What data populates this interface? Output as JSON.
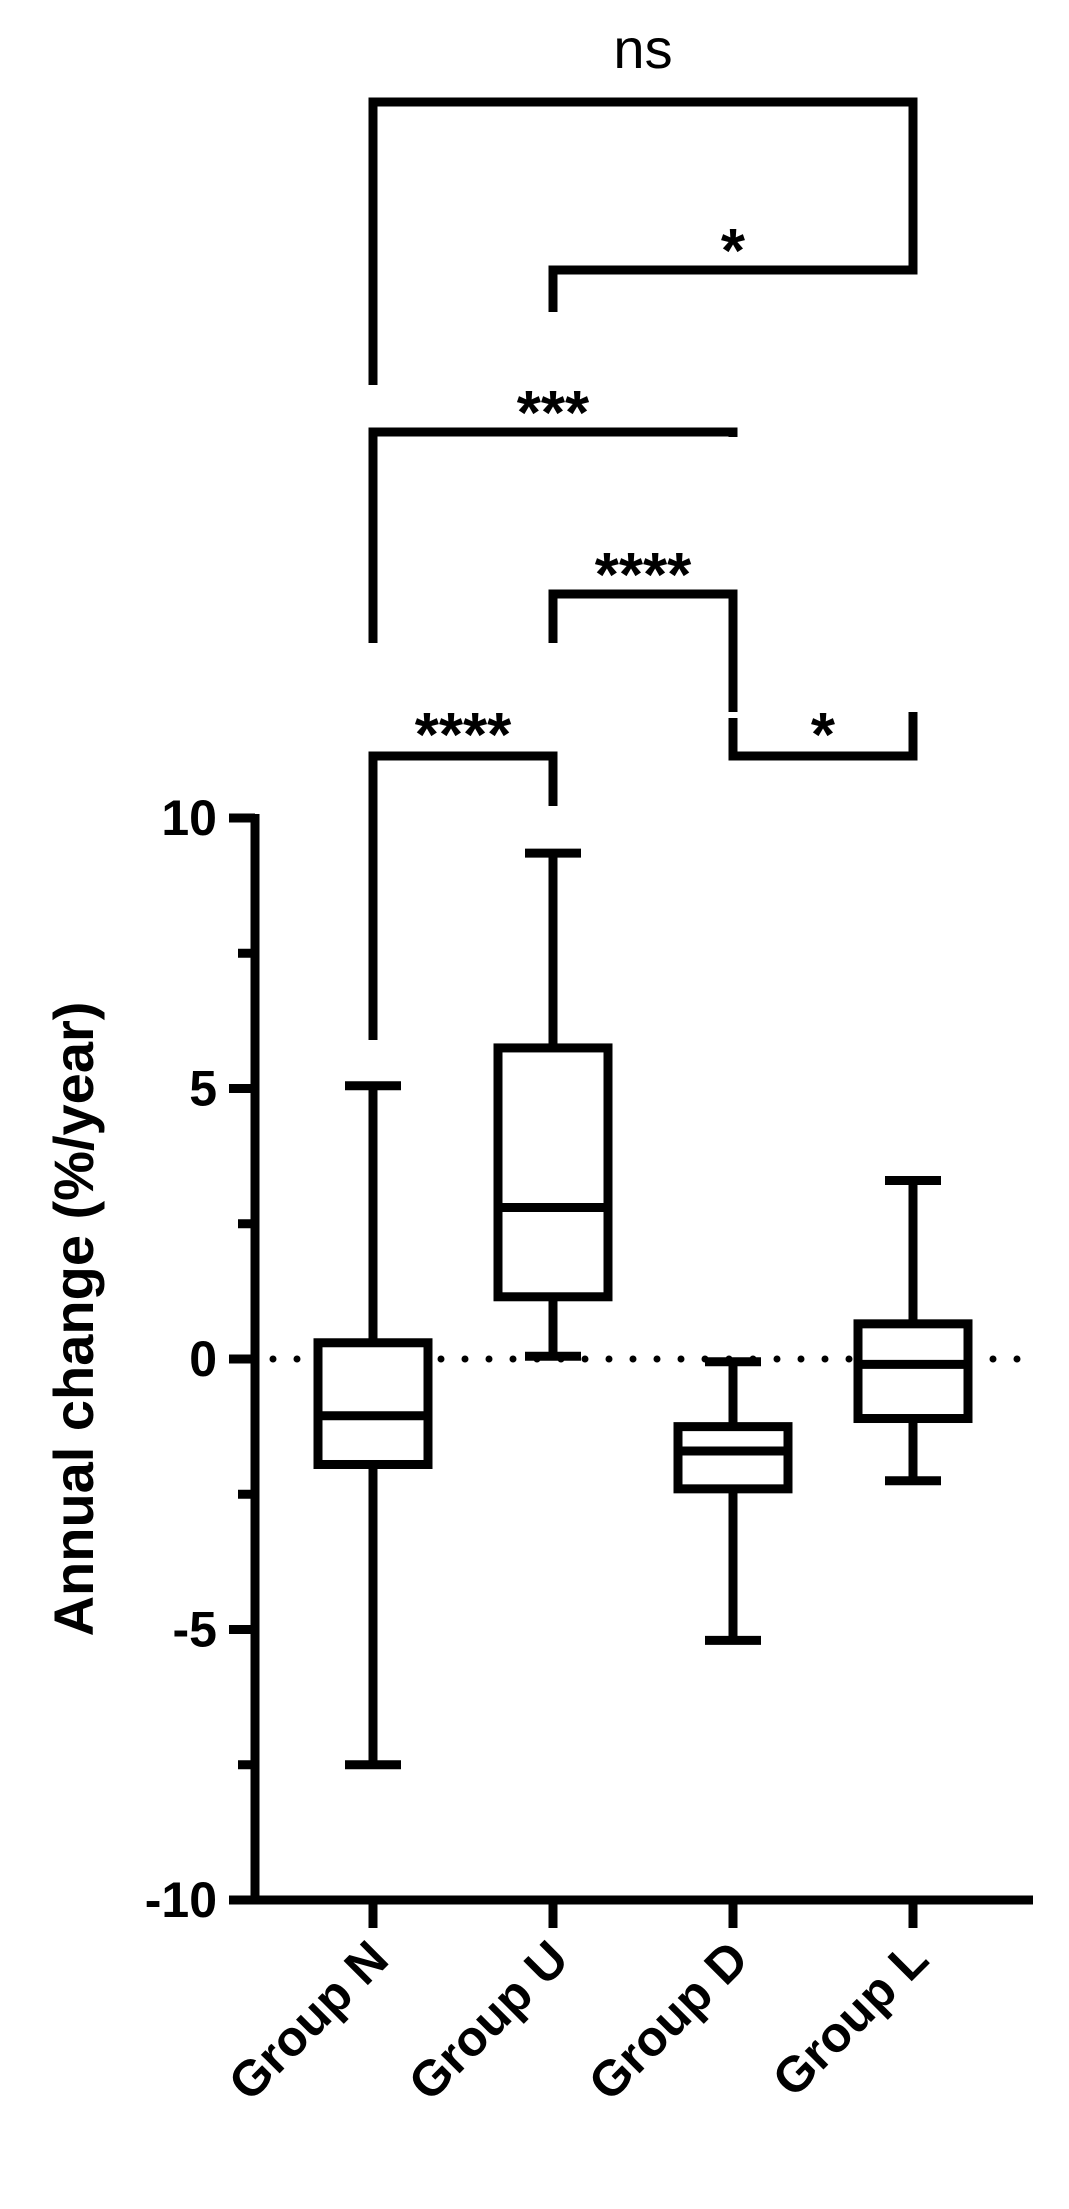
{
  "chart_data": {
    "type": "box",
    "ylabel": "Annual change (%/year)",
    "ylim": [
      -10,
      10
    ],
    "yticks": [
      10,
      5,
      0,
      -5,
      -10
    ],
    "yticks_labels": [
      "10",
      "5",
      "0",
      "-5",
      "-10"
    ],
    "y_minor_ticks": [
      7.5,
      2.5,
      -2.5,
      -7.5
    ],
    "reference_line": {
      "y": 0,
      "style": "dotted"
    },
    "categories": [
      "Group N",
      "Group U",
      "Group D",
      "Group L"
    ],
    "boxes": [
      {
        "name": "Group N",
        "min": -7.5,
        "q1": -1.95,
        "median": -1.05,
        "q3": 0.3,
        "max": 5.05
      },
      {
        "name": "Group U",
        "min": 0.05,
        "q1": 1.15,
        "median": 2.8,
        "q3": 5.75,
        "max": 9.35
      },
      {
        "name": "Group D",
        "min": -5.2,
        "q1": -2.4,
        "median": -1.7,
        "q3": -1.25,
        "max": -0.05
      },
      {
        "name": "Group L",
        "min": -2.25,
        "q1": -1.1,
        "median": -0.1,
        "q3": 0.65,
        "max": 3.3
      }
    ],
    "comparisons": [
      {
        "from": "Group N",
        "to": "Group U",
        "label": "****"
      },
      {
        "from": "Group D",
        "to": "Group L",
        "label": "*"
      },
      {
        "from": "Group U",
        "to": "Group D",
        "label": "****"
      },
      {
        "from": "Group N",
        "to": "Group D",
        "label": "***"
      },
      {
        "from": "Group U",
        "to": "Group L",
        "label": "*"
      },
      {
        "from": "Group N",
        "to": "Group L",
        "label": "ns"
      }
    ]
  }
}
